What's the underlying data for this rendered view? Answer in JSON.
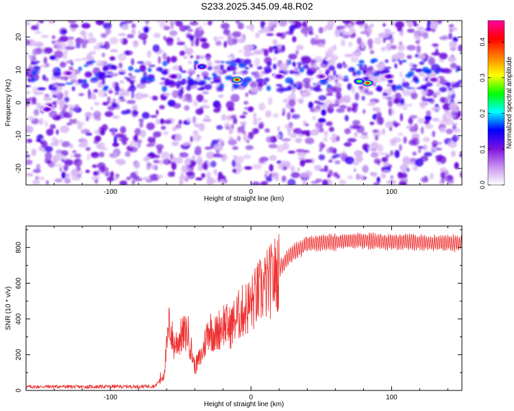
{
  "title": "S233.2025.345.09.48.R02",
  "chart_data": [
    {
      "type": "heatmap",
      "xlabel": "Height of straight line (km)",
      "ylabel": "Frequency (Hz)",
      "xlim": [
        -160,
        150
      ],
      "ylim": [
        -25,
        25
      ],
      "x_ticks": [
        -100,
        0,
        100
      ],
      "y_ticks": [
        -20,
        -10,
        0,
        10,
        20
      ],
      "colorbar": {
        "label": "Normalized spectral amplitude",
        "range": [
          0,
          0.46
        ],
        "ticks": [
          0.0,
          0.1,
          0.2,
          0.3,
          0.4
        ],
        "colormap": [
          "#ffffff",
          "#c890f0",
          "#7a10e0",
          "#0000ff",
          "#00ffff",
          "#00ff00",
          "#ffff00",
          "#ff8000",
          "#ff0000",
          "#ff00a0"
        ]
      },
      "hotspots": [
        {
          "x": -10,
          "y": 7,
          "value": 0.42
        },
        {
          "x": 83,
          "y": 6,
          "value": 0.4
        },
        {
          "x": 77,
          "y": 6.5,
          "value": 0.28
        },
        {
          "x": -35,
          "y": 11,
          "value": 0.18
        },
        {
          "x": -55,
          "y": 8,
          "value": 0.12
        },
        {
          "x": 20,
          "y": 8,
          "value": 0.12
        },
        {
          "x": 98,
          "y": 8,
          "value": 0.12
        },
        {
          "x": -145,
          "y": -2,
          "value": 0.12
        },
        {
          "x": -130,
          "y": 9,
          "value": 0.1
        },
        {
          "x": 50,
          "y": 8,
          "value": 0.1
        },
        {
          "x": 130,
          "y": 7,
          "value": 0.1
        }
      ]
    },
    {
      "type": "line",
      "xlabel": "Height of straight line (km)",
      "ylabel": "SNR (10 * v/v)",
      "xlim": [
        -160,
        150
      ],
      "ylim": [
        0,
        920
      ],
      "x_ticks": [
        -100,
        0,
        100
      ],
      "y_ticks": [
        0,
        200,
        400,
        600,
        800
      ],
      "color": "#ee3333",
      "series": [
        {
          "x": [
            -160,
            -140,
            -120,
            -100,
            -80,
            -68,
            -62,
            -58,
            -55,
            -50,
            -45,
            -40,
            -35,
            -30,
            -25,
            -20,
            -15,
            -10,
            -5,
            0,
            5,
            10,
            15,
            20,
            25,
            30,
            40,
            50,
            60,
            70,
            80,
            90,
            100,
            110,
            120,
            130,
            140,
            150
          ],
          "y": [
            20,
            22,
            20,
            22,
            22,
            25,
            90,
            380,
            250,
            300,
            330,
            130,
            200,
            350,
            310,
            380,
            350,
            410,
            450,
            480,
            540,
            580,
            620,
            680,
            730,
            770,
            820,
            830,
            830,
            840,
            840,
            835,
            830,
            835,
            830,
            825,
            825,
            825
          ]
        }
      ]
    }
  ]
}
